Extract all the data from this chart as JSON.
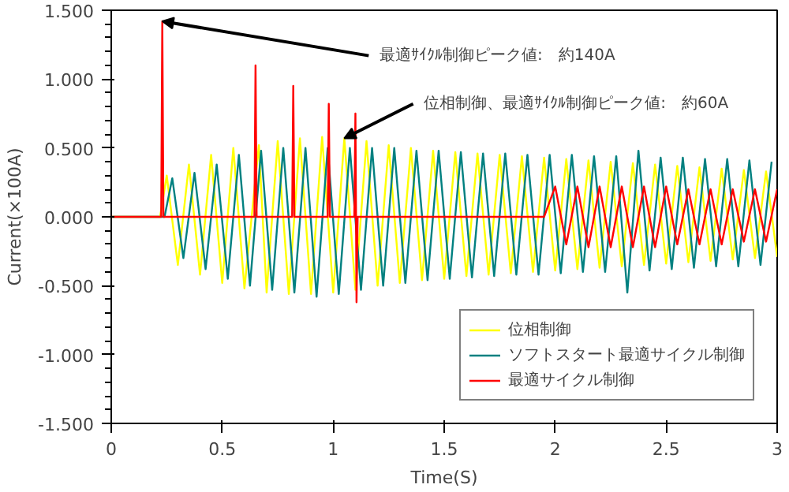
{
  "chart_data": {
    "type": "line",
    "xlabel": "Time(S)",
    "ylabel": "Current(×100A)",
    "xlim": [
      0,
      3
    ],
    "ylim": [
      -1.5,
      1.5
    ],
    "xticks": [
      0,
      0.5,
      1,
      1.5,
      2,
      2.5,
      3
    ],
    "yticks": [
      {
        "value": -1.5,
        "label": "-1.500"
      },
      {
        "value": -1,
        "label": "-1.000"
      },
      {
        "value": -0.5,
        "label": "-0.500"
      },
      {
        "value": 0,
        "label": "0.000"
      },
      {
        "value": 0.5,
        "label": "0.500"
      },
      {
        "value": 1,
        "label": "1.000"
      },
      {
        "value": 1.5,
        "label": "1.500"
      }
    ],
    "grid": false,
    "legend": "bottom right",
    "marker": "none",
    "line_style": "solid",
    "series": [
      {
        "name": "位相制御",
        "color": "#ffff00",
        "x": [
          0,
          0.22,
          0.25,
          0.3,
          0.35,
          0.4,
          0.45,
          0.5,
          0.55,
          0.6,
          0.665,
          0.7,
          0.75,
          0.8,
          0.85,
          0.9,
          0.95,
          1.0,
          1.05,
          1.1,
          1.15,
          1.2,
          1.25,
          1.3,
          1.35,
          1.4,
          1.45,
          1.5,
          1.55,
          1.6,
          1.65,
          1.7,
          1.75,
          1.8,
          1.85,
          1.9,
          1.95,
          2.0,
          2.05,
          2.1,
          2.15,
          2.2,
          2.25,
          2.3,
          2.35,
          2.4,
          2.45,
          2.5,
          2.55,
          2.6,
          2.65,
          2.7,
          2.75,
          2.8,
          2.85,
          2.9,
          2.95,
          3.0
        ],
        "values": [
          0,
          0,
          0.3,
          -0.35,
          0.38,
          -0.42,
          0.45,
          -0.48,
          0.5,
          -0.52,
          0.52,
          -0.55,
          0.55,
          -0.56,
          0.57,
          -0.56,
          0.58,
          -0.55,
          0.57,
          -0.53,
          0.55,
          -0.5,
          0.52,
          -0.48,
          0.5,
          -0.46,
          0.48,
          -0.45,
          0.47,
          -0.43,
          0.46,
          -0.42,
          0.45,
          -0.41,
          0.44,
          -0.4,
          0.43,
          -0.39,
          0.42,
          -0.38,
          0.41,
          -0.37,
          0.4,
          -0.36,
          0.39,
          -0.35,
          0.38,
          -0.34,
          0.37,
          -0.33,
          0.36,
          -0.32,
          0.35,
          -0.31,
          0.34,
          -0.3,
          0.33,
          -0.29
        ]
      },
      {
        "name": "ソフトスタート最適サイクル制御",
        "color": "#008080",
        "x": [
          0,
          0.24,
          0.275,
          0.325,
          0.375,
          0.425,
          0.475,
          0.525,
          0.575,
          0.625,
          0.675,
          0.725,
          0.775,
          0.825,
          0.875,
          0.925,
          0.975,
          1.025,
          1.075,
          1.125,
          1.175,
          1.225,
          1.275,
          1.325,
          1.375,
          1.425,
          1.475,
          1.525,
          1.575,
          1.625,
          1.675,
          1.725,
          1.775,
          1.825,
          1.875,
          1.925,
          1.975,
          2.025,
          2.075,
          2.125,
          2.175,
          2.225,
          2.275,
          2.325,
          2.375,
          2.425,
          2.475,
          2.525,
          2.575,
          2.625,
          2.675,
          2.725,
          2.775,
          2.825,
          2.875,
          2.925,
          2.975
        ],
        "values": [
          0,
          0,
          0.28,
          -0.3,
          0.32,
          -0.38,
          0.38,
          -0.45,
          0.45,
          -0.5,
          0.48,
          -0.53,
          0.5,
          -0.55,
          0.5,
          -0.58,
          0.5,
          -0.56,
          0.5,
          -0.53,
          0.5,
          -0.5,
          0.5,
          -0.48,
          0.48,
          -0.46,
          0.48,
          -0.45,
          0.47,
          -0.44,
          0.46,
          -0.43,
          0.46,
          -0.42,
          0.45,
          -0.42,
          0.45,
          -0.41,
          0.45,
          -0.4,
          0.44,
          -0.4,
          0.44,
          -0.55,
          0.48,
          -0.39,
          0.43,
          -0.38,
          0.43,
          -0.37,
          0.42,
          -0.36,
          0.42,
          -0.36,
          0.41,
          -0.35,
          0.4
        ]
      },
      {
        "name": "最適サイクル制御",
        "color": "#ff0000",
        "x": [
          0,
          0.225,
          0.23,
          0.235,
          0.645,
          0.65,
          0.655,
          0.815,
          0.82,
          0.825,
          0.975,
          0.98,
          0.985,
          1.095,
          1.1,
          1.105,
          1.11,
          1.115,
          1.95,
          2.0,
          2.05,
          2.1,
          2.15,
          2.2,
          2.25,
          2.3,
          2.35,
          2.4,
          2.45,
          2.5,
          2.55,
          2.6,
          2.65,
          2.7,
          2.75,
          2.8,
          2.85,
          2.9,
          2.95,
          3.0
        ],
        "values": [
          0,
          0,
          1.42,
          0,
          0,
          1.1,
          0,
          0,
          0.95,
          0,
          0,
          0.82,
          0,
          0,
          0.75,
          -0.62,
          0,
          0,
          0,
          0.22,
          -0.2,
          0.22,
          -0.22,
          0.22,
          -0.22,
          0.22,
          -0.22,
          0.22,
          -0.22,
          0.22,
          -0.2,
          0.2,
          -0.2,
          0.2,
          -0.2,
          0.2,
          -0.18,
          0.2,
          -0.18,
          0.2
        ]
      }
    ],
    "annotations": [
      {
        "text": "最適ｻｲｸﾙ制御ピーク値:　約140A",
        "x": 0.23,
        "y": 1.42
      },
      {
        "text": "位相制御、最適ｻｲｸﾙ制御ピーク値:　約60A",
        "x": 1.05,
        "y": 0.57
      }
    ]
  }
}
